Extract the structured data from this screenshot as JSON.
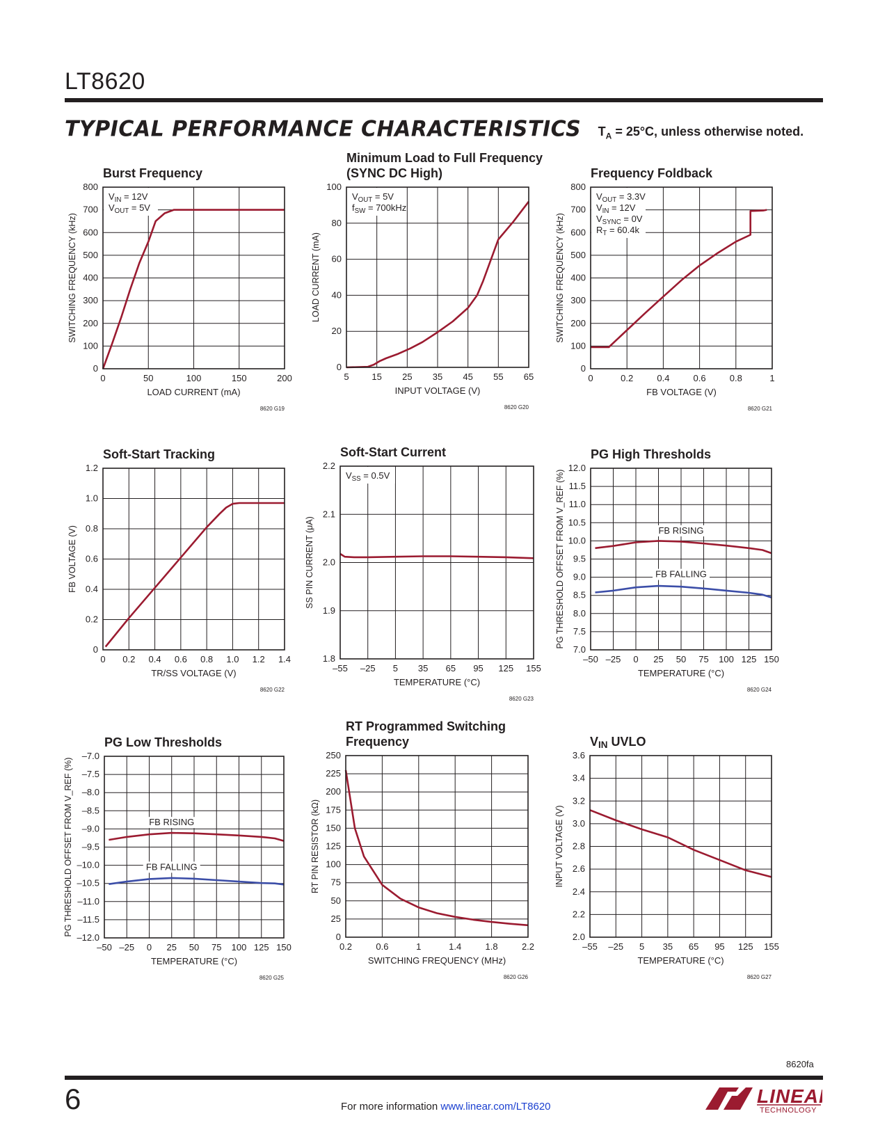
{
  "header": {
    "part_number": "LT8620",
    "section_title": "TYPICAL PERFORMANCE CHARACTERISTICS",
    "note_t": "T",
    "note_sub": "A",
    "note_rest": " = 25°C, unless otherwise noted."
  },
  "footer": {
    "doc_id": "8620fa",
    "page_number": "6",
    "info_text": "For more information ",
    "link_text": "www.linear.com/LT8620",
    "logo_word": "LINEAR",
    "logo_sub": "TECHNOLOGY"
  },
  "colors": {
    "red": "#9b1b30",
    "blue": "#3c4ea8",
    "grid": "#231f20"
  },
  "chart_data": [
    {
      "id": "g19",
      "type": "line",
      "title": [
        "Burst Frequency"
      ],
      "xlabel": "LOAD CURRENT (mA)",
      "ylabel": "SWITCHING FREQUENCY (kHz)",
      "xlim": [
        0,
        200
      ],
      "ylim": [
        0,
        800
      ],
      "xticks": [
        0,
        50,
        100,
        150,
        200
      ],
      "xtick_labels": [
        "0",
        "50",
        "100",
        "150",
        "200"
      ],
      "yticks": [
        0,
        100,
        200,
        300,
        400,
        500,
        600,
        700,
        800
      ],
      "ytick_labels": [
        "0",
        "100",
        "200",
        "300",
        "400",
        "500",
        "600",
        "700",
        "800"
      ],
      "notes": [
        "V_IN = 12V",
        "V_OUT = 5V"
      ],
      "code": "8620 G19",
      "series": [
        {
          "color": "red",
          "x": [
            0,
            10,
            20,
            30,
            40,
            50,
            58,
            68,
            78,
            90,
            120,
            150,
            200
          ],
          "y": [
            0,
            110,
            225,
            350,
            465,
            560,
            650,
            685,
            700,
            700,
            700,
            700,
            700
          ]
        }
      ]
    },
    {
      "id": "g20",
      "type": "line",
      "title": [
        "Minimum Load to Full Frequency",
        "(SYNC DC High)"
      ],
      "xlabel": "INPUT VOLTAGE (V)",
      "ylabel": "LOAD CURRENT (mA)",
      "xlim": [
        5,
        65
      ],
      "ylim": [
        0,
        100
      ],
      "xticks": [
        5,
        15,
        25,
        35,
        45,
        55,
        65
      ],
      "xtick_labels": [
        "5",
        "15",
        "25",
        "35",
        "45",
        "55",
        "65"
      ],
      "yticks": [
        0,
        20,
        40,
        60,
        80,
        100
      ],
      "ytick_labels": [
        "0",
        "20",
        "40",
        "60",
        "80",
        "100"
      ],
      "notes": [
        "V_OUT = 5V",
        "f_SW = 700kHz"
      ],
      "code": "8620 G20",
      "series": [
        {
          "color": "red",
          "x": [
            5,
            12,
            14,
            16,
            18,
            22,
            26,
            30,
            35,
            40,
            45,
            48,
            50,
            55,
            60,
            65
          ],
          "y": [
            0,
            0.3,
            1.5,
            3.5,
            5,
            7.5,
            10.5,
            14,
            19.5,
            25.5,
            33,
            40,
            48,
            71,
            81,
            92
          ]
        }
      ]
    },
    {
      "id": "g21",
      "type": "line",
      "title": [
        "Frequency Foldback"
      ],
      "xlabel": "FB VOLTAGE (V)",
      "ylabel": "SWITCHING FREQUENCY (kHz)",
      "xlim": [
        0,
        1
      ],
      "ylim": [
        0,
        800
      ],
      "xticks": [
        0,
        0.2,
        0.4,
        0.6,
        0.8,
        1
      ],
      "xtick_labels": [
        "0",
        "0.2",
        "0.4",
        "0.6",
        "0.8",
        "1"
      ],
      "yticks": [
        0,
        100,
        200,
        300,
        400,
        500,
        600,
        700,
        800
      ],
      "ytick_labels": [
        "0",
        "100",
        "200",
        "300",
        "400",
        "500",
        "600",
        "700",
        "800"
      ],
      "notes": [
        "V_OUT = 3.3V",
        "V_IN = 12V",
        "V_SYNC = 0V",
        "R_T = 60.4k"
      ],
      "code": "8620 G21",
      "series": [
        {
          "color": "red",
          "x": [
            0,
            0.1,
            0.2,
            0.3,
            0.4,
            0.5,
            0.6,
            0.7,
            0.8,
            0.88,
            0.88,
            0.95,
            0.97
          ],
          "y": [
            95,
            95,
            170,
            245,
            318,
            390,
            455,
            510,
            560,
            590,
            695,
            697,
            700
          ]
        }
      ]
    },
    {
      "id": "g22",
      "type": "line",
      "title": [
        "Soft-Start Tracking"
      ],
      "xlabel": "TR/SS VOLTAGE (V)",
      "ylabel": "FB VOLTAGE (V)",
      "xlim": [
        0,
        1.4
      ],
      "ylim": [
        0,
        1.2
      ],
      "xticks": [
        0,
        0.2,
        0.4,
        0.6,
        0.8,
        1.0,
        1.2,
        1.4
      ],
      "xtick_labels": [
        "0",
        "0.2",
        "0.4",
        "0.6",
        "0.8",
        "1.0",
        "1.2",
        "1.4"
      ],
      "yticks": [
        0,
        0.2,
        0.4,
        0.6,
        0.8,
        1.0,
        1.2
      ],
      "ytick_labels": [
        "0",
        "0.2",
        "0.4",
        "0.6",
        "0.8",
        "1.0",
        "1.2"
      ],
      "notes": [],
      "code": "8620 G22",
      "series": [
        {
          "color": "red",
          "x": [
            0.02,
            0.2,
            0.4,
            0.6,
            0.8,
            0.9,
            0.95,
            1.0,
            1.05,
            1.1,
            1.2,
            1.4
          ],
          "y": [
            0.02,
            0.21,
            0.41,
            0.61,
            0.81,
            0.9,
            0.94,
            0.965,
            0.97,
            0.97,
            0.97,
            0.97
          ]
        }
      ]
    },
    {
      "id": "g23",
      "type": "line",
      "title": [
        "Soft-Start Current"
      ],
      "xlabel": "TEMPERATURE (°C)",
      "ylabel": "SS PIN CURRENT (μA)",
      "xlim": [
        -55,
        155
      ],
      "ylim": [
        1.8,
        2.2
      ],
      "xticks": [
        -55,
        -25,
        5,
        35,
        65,
        95,
        125,
        155
      ],
      "xtick_labels": [
        "–55",
        "–25",
        "5",
        "35",
        "65",
        "95",
        "125",
        "155"
      ],
      "yticks": [
        1.8,
        1.9,
        2.0,
        2.1,
        2.2
      ],
      "ytick_labels": [
        "1.8",
        "1.9",
        "2.0",
        "2.1",
        "2.2"
      ],
      "notes": [
        "V_SS = 0.5V"
      ],
      "code": "8620 G23",
      "series": [
        {
          "color": "red",
          "x": [
            -55,
            -50,
            -40,
            -25,
            5,
            35,
            65,
            95,
            125,
            155
          ],
          "y": [
            2.018,
            2.012,
            2.011,
            2.011,
            2.012,
            2.013,
            2.013,
            2.012,
            2.011,
            2.009
          ]
        }
      ]
    },
    {
      "id": "g24",
      "type": "line",
      "title": [
        "PG High Thresholds"
      ],
      "xlabel": "TEMPERATURE (°C)",
      "ylabel": "PG THRESHOLD OFFSET FROM V_REF (%)",
      "xlim": [
        -50,
        150
      ],
      "ylim": [
        7.0,
        12.0
      ],
      "xticks": [
        -50,
        -25,
        0,
        25,
        50,
        75,
        100,
        125,
        150
      ],
      "xtick_labels": [
        "–50",
        "–25",
        "0",
        "25",
        "50",
        "75",
        "100",
        "125",
        "150"
      ],
      "yticks": [
        7.0,
        7.5,
        8.0,
        8.5,
        9.0,
        9.5,
        10.0,
        10.5,
        11.0,
        11.5,
        12.0
      ],
      "ytick_labels": [
        "7.0",
        "7.5",
        "8.0",
        "8.5",
        "9.0",
        "9.5",
        "10.0",
        "10.5",
        "11.0",
        "11.5",
        "12.0"
      ],
      "notes": [],
      "code": "8620 G24",
      "series": [
        {
          "name": "FB RISING",
          "color": "red",
          "x": [
            -45,
            -25,
            0,
            25,
            50,
            75,
            100,
            125,
            140,
            150
          ],
          "y": [
            9.8,
            9.86,
            9.96,
            10.0,
            9.98,
            9.93,
            9.87,
            9.8,
            9.75,
            9.66
          ]
        },
        {
          "name": "FB FALLING",
          "color": "blue",
          "x": [
            -45,
            -25,
            0,
            25,
            50,
            75,
            100,
            125,
            140,
            150
          ],
          "y": [
            8.58,
            8.63,
            8.72,
            8.76,
            8.74,
            8.69,
            8.63,
            8.57,
            8.52,
            8.44
          ]
        }
      ],
      "labels": [
        {
          "text": "FB RISING",
          "x": 50,
          "y": 10.2
        },
        {
          "text": "FB FALLING",
          "x": 50,
          "y": 9.0
        }
      ]
    },
    {
      "id": "g25",
      "type": "line",
      "title": [
        "PG Low Thresholds"
      ],
      "xlabel": "TEMPERATURE (°C)",
      "ylabel": "PG THRESHOLD OFFSET FROM V_REF (%)",
      "xlim": [
        -50,
        150
      ],
      "ylim": [
        -12.0,
        -7.0
      ],
      "xticks": [
        -50,
        -25,
        0,
        25,
        50,
        75,
        100,
        125,
        150
      ],
      "xtick_labels": [
        "–50",
        "–25",
        "0",
        "25",
        "50",
        "75",
        "100",
        "125",
        "150"
      ],
      "yticks": [
        -12.0,
        -11.5,
        -11.0,
        -10.5,
        -10.0,
        -9.5,
        -9.0,
        -8.5,
        -8.0,
        -7.5,
        -7.0
      ],
      "ytick_labels": [
        "–12.0",
        "–11.5",
        "–11.0",
        "–10.5",
        "–10.0",
        "–9.5",
        "–9.0",
        "–8.5",
        "–8.0",
        "–7.5",
        "–7.0"
      ],
      "notes": [],
      "code": "8620 G25",
      "series": [
        {
          "name": "FB RISING",
          "color": "red",
          "x": [
            -45,
            -25,
            0,
            25,
            50,
            75,
            100,
            125,
            140,
            150
          ],
          "y": [
            -9.3,
            -9.22,
            -9.15,
            -9.11,
            -9.12,
            -9.15,
            -9.18,
            -9.22,
            -9.26,
            -9.33
          ]
        },
        {
          "name": "FB FALLING",
          "color": "blue",
          "x": [
            -45,
            -25,
            0,
            25,
            50,
            75,
            100,
            125,
            140,
            150
          ],
          "y": [
            -10.52,
            -10.45,
            -10.38,
            -10.35,
            -10.37,
            -10.41,
            -10.45,
            -10.49,
            -10.5,
            -10.53
          ]
        }
      ],
      "labels": [
        {
          "text": "FB RISING",
          "x": 25,
          "y": -8.9
        },
        {
          "text": "FB FALLING",
          "x": 25,
          "y": -10.13
        }
      ]
    },
    {
      "id": "g26",
      "type": "line",
      "title": [
        "RT Programmed Switching",
        "Frequency"
      ],
      "xlabel": "SWITCHING FREQUENCY (MHz)",
      "ylabel": "RT PIN RESISTOR (kΩ)",
      "xlim": [
        0.2,
        2.2
      ],
      "ylim": [
        0,
        250
      ],
      "xticks": [
        0.2,
        0.6,
        1.0,
        1.4,
        1.8,
        2.2
      ],
      "xtick_labels": [
        "0.2",
        "0.6",
        "1",
        "1.4",
        "1.8",
        "2.2"
      ],
      "yticks": [
        0,
        25,
        50,
        75,
        100,
        125,
        150,
        175,
        200,
        225,
        250
      ],
      "ytick_labels": [
        "0",
        "25",
        "50",
        "75",
        "100",
        "125",
        "150",
        "175",
        "200",
        "225",
        "250"
      ],
      "notes": [],
      "code": "8620 G26",
      "series": [
        {
          "color": "red",
          "x": [
            0.2,
            0.3,
            0.4,
            0.6,
            0.8,
            1.0,
            1.2,
            1.4,
            1.6,
            1.8,
            2.0,
            2.2
          ],
          "y": [
            230,
            150,
            111,
            72,
            53,
            41,
            33,
            28,
            24,
            21,
            18.5,
            16.5
          ]
        }
      ]
    },
    {
      "id": "g27",
      "type": "line",
      "title": [
        "V_IN UVLO"
      ],
      "xlabel": "TEMPERATURE (°C)",
      "ylabel": "INPUT VOLTAGE (V)",
      "xlim": [
        -55,
        155
      ],
      "ylim": [
        2.0,
        3.6
      ],
      "xticks": [
        -55,
        -25,
        5,
        35,
        65,
        95,
        125,
        155
      ],
      "xtick_labels": [
        "–55",
        "–25",
        "5",
        "35",
        "65",
        "95",
        "125",
        "155"
      ],
      "yticks": [
        2.0,
        2.2,
        2.4,
        2.6,
        2.8,
        3.0,
        3.2,
        3.4,
        3.6
      ],
      "ytick_labels": [
        "2.0",
        "2.2",
        "2.4",
        "2.6",
        "2.8",
        "3.0",
        "3.2",
        "3.4",
        "3.6"
      ],
      "notes": [],
      "code": "8620 G27",
      "series": [
        {
          "color": "red",
          "x": [
            -55,
            -25,
            5,
            35,
            65,
            95,
            125,
            155
          ],
          "y": [
            3.12,
            3.03,
            2.95,
            2.88,
            2.77,
            2.68,
            2.59,
            2.53
          ]
        }
      ]
    }
  ]
}
